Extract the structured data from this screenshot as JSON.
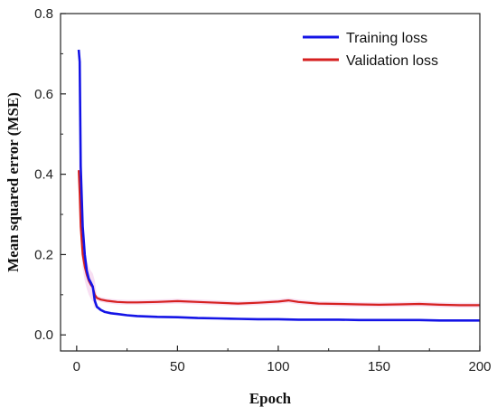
{
  "chart_data": {
    "type": "line",
    "title": "",
    "xlabel": "Epoch",
    "ylabel": "Mean squared error (MSE)",
    "xlim": [
      -8,
      200
    ],
    "ylim": [
      -0.04,
      0.8
    ],
    "xticks": [
      0,
      50,
      100,
      150,
      200
    ],
    "yticks": [
      0.0,
      0.2,
      0.4,
      0.6,
      0.8
    ],
    "ytick_labels": [
      "0.0",
      "0.2",
      "0.4",
      "0.6",
      "0.8"
    ],
    "legend_position": "top-right",
    "grid": false,
    "series": [
      {
        "name": "Training loss",
        "color": "#1414e6",
        "x": [
          1,
          1.5,
          2,
          3,
          4,
          5,
          6,
          7,
          8,
          9,
          10,
          12,
          14,
          17,
          20,
          25,
          30,
          40,
          50,
          60,
          70,
          80,
          90,
          100,
          110,
          120,
          130,
          140,
          150,
          160,
          170,
          180,
          190,
          200
        ],
        "values": [
          0.71,
          0.68,
          0.42,
          0.27,
          0.2,
          0.16,
          0.14,
          0.13,
          0.12,
          0.085,
          0.07,
          0.062,
          0.057,
          0.054,
          0.052,
          0.049,
          0.047,
          0.045,
          0.044,
          0.042,
          0.041,
          0.04,
          0.039,
          0.039,
          0.038,
          0.038,
          0.038,
          0.037,
          0.037,
          0.037,
          0.037,
          0.036,
          0.036,
          0.036
        ]
      },
      {
        "name": "Validation loss",
        "color": "#d62020",
        "x": [
          1,
          1.5,
          2,
          3,
          4,
          5,
          6,
          7,
          8,
          9,
          10,
          12,
          15,
          20,
          25,
          30,
          40,
          50,
          60,
          70,
          80,
          90,
          100,
          105,
          110,
          120,
          130,
          140,
          150,
          160,
          170,
          180,
          190,
          200
        ],
        "values": [
          0.41,
          0.35,
          0.27,
          0.2,
          0.17,
          0.15,
          0.135,
          0.125,
          0.118,
          0.1,
          0.092,
          0.088,
          0.085,
          0.082,
          0.081,
          0.081,
          0.082,
          0.084,
          0.082,
          0.08,
          0.078,
          0.08,
          0.083,
          0.086,
          0.082,
          0.078,
          0.077,
          0.076,
          0.075,
          0.076,
          0.077,
          0.075,
          0.074,
          0.074
        ]
      }
    ]
  }
}
